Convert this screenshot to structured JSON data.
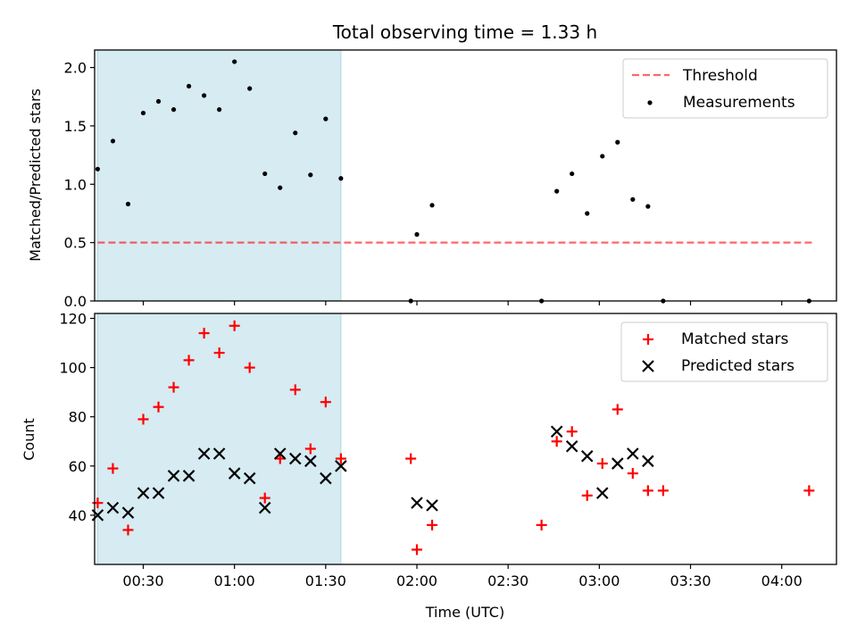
{
  "figure": {
    "title": "Total observing time = 1.33 h",
    "xlabel": "Time (UTC)"
  },
  "colors": {
    "shade": "#add8e6",
    "threshold": "#ff0000",
    "measurement": "#000000",
    "matched": "#ff0000",
    "predicted": "#000000"
  },
  "chart_data": [
    {
      "type": "scatter",
      "panel": "top",
      "ylabel": "Matched/Predicted stars",
      "xlim": [
        "00:14",
        "04:18"
      ],
      "ylim": [
        0,
        2.15
      ],
      "x_ticks": [
        "00:30",
        "01:00",
        "01:30",
        "02:00",
        "02:30",
        "03:00",
        "03:30",
        "04:00"
      ],
      "y_ticks": [
        0.0,
        0.5,
        1.0,
        1.5,
        2.0
      ],
      "y_tick_labels": [
        "0.0",
        "0.5",
        "1.0",
        "1.5",
        "2.0"
      ],
      "shaded_region": [
        "00:15",
        "01:35"
      ],
      "legend": {
        "position": "upper right",
        "entries": [
          "Threshold",
          "Measurements"
        ]
      },
      "series": [
        {
          "name": "Threshold",
          "style": "dashed-line",
          "x": [
            "00:15",
            "04:10"
          ],
          "y": [
            0.5,
            0.5
          ]
        },
        {
          "name": "Measurements",
          "style": "dot",
          "x": [
            "00:15",
            "00:20",
            "00:25",
            "00:30",
            "00:35",
            "00:40",
            "00:45",
            "00:50",
            "00:55",
            "01:00",
            "01:05",
            "01:10",
            "01:15",
            "01:20",
            "01:25",
            "01:30",
            "01:35",
            "01:58",
            "02:00",
            "02:05",
            "02:41",
            "02:46",
            "02:51",
            "02:56",
            "03:01",
            "03:06",
            "03:11",
            "03:16",
            "03:21",
            "04:09"
          ],
          "y": [
            1.13,
            1.37,
            0.83,
            1.61,
            1.71,
            1.64,
            1.84,
            1.76,
            1.64,
            2.05,
            1.82,
            1.09,
            0.97,
            1.44,
            1.08,
            1.56,
            1.05,
            0.0,
            0.57,
            0.82,
            0.0,
            0.94,
            1.09,
            0.75,
            1.24,
            1.36,
            0.87,
            0.81,
            0.0,
            0.0
          ]
        }
      ]
    },
    {
      "type": "scatter",
      "panel": "bottom",
      "ylabel": "Count",
      "xlim": [
        "00:14",
        "04:18"
      ],
      "ylim": [
        20,
        122
      ],
      "x_ticks": [
        "00:30",
        "01:00",
        "01:30",
        "02:00",
        "02:30",
        "03:00",
        "03:30",
        "04:00"
      ],
      "y_ticks": [
        40,
        60,
        80,
        100,
        120
      ],
      "shaded_region": [
        "00:15",
        "01:35"
      ],
      "legend": {
        "position": "upper right",
        "entries": [
          "Matched stars",
          "Predicted stars"
        ]
      },
      "series": [
        {
          "name": "Matched stars",
          "marker": "plus",
          "x": [
            "00:15",
            "00:20",
            "00:25",
            "00:30",
            "00:35",
            "00:40",
            "00:45",
            "00:50",
            "00:55",
            "01:00",
            "01:05",
            "01:10",
            "01:15",
            "01:20",
            "01:25",
            "01:30",
            "01:35",
            "01:58",
            "02:00",
            "02:05",
            "02:41",
            "02:46",
            "02:51",
            "02:56",
            "03:01",
            "03:06",
            "03:11",
            "03:16",
            "03:21",
            "04:09"
          ],
          "y": [
            45,
            59,
            34,
            79,
            84,
            92,
            103,
            114,
            106,
            117,
            100,
            47,
            63,
            91,
            67,
            86,
            63,
            63,
            26,
            36,
            36,
            70,
            74,
            48,
            61,
            83,
            57,
            50,
            50,
            50
          ]
        },
        {
          "name": "Predicted stars",
          "marker": "cross",
          "x": [
            "00:15",
            "00:20",
            "00:25",
            "00:30",
            "00:35",
            "00:40",
            "00:45",
            "00:50",
            "00:55",
            "01:00",
            "01:05",
            "01:10",
            "01:15",
            "01:20",
            "01:25",
            "01:30",
            "01:35",
            "02:00",
            "02:05",
            "02:46",
            "02:51",
            "02:56",
            "03:01",
            "03:06",
            "03:11",
            "03:16"
          ],
          "y": [
            40,
            43,
            41,
            49,
            49,
            56,
            56,
            65,
            65,
            57,
            55,
            43,
            65,
            63,
            62,
            55,
            60,
            45,
            44,
            74,
            68,
            64,
            49,
            61,
            65,
            62
          ]
        }
      ]
    }
  ]
}
